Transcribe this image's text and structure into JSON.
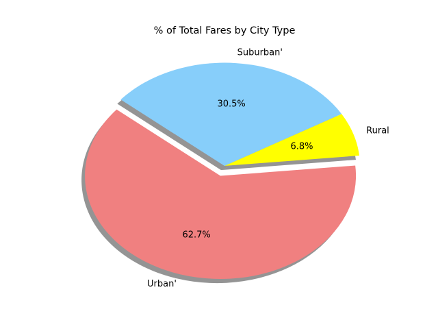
{
  "chart_data": {
    "type": "pie",
    "title": "% of Total Fares by City Type",
    "slices": [
      {
        "label": "Urban'",
        "value": 62.7,
        "pct_label": "62.7%",
        "color": "#f08080",
        "exploded": true
      },
      {
        "label": "Rural",
        "value": 6.8,
        "pct_label": "6.8%",
        "color": "#ffff00",
        "exploded": false
      },
      {
        "label": "Suburban'",
        "value": 30.5,
        "pct_label": "30.5%",
        "color": "#87cefa",
        "exploded": false
      }
    ],
    "shadow": true,
    "grid": false
  }
}
